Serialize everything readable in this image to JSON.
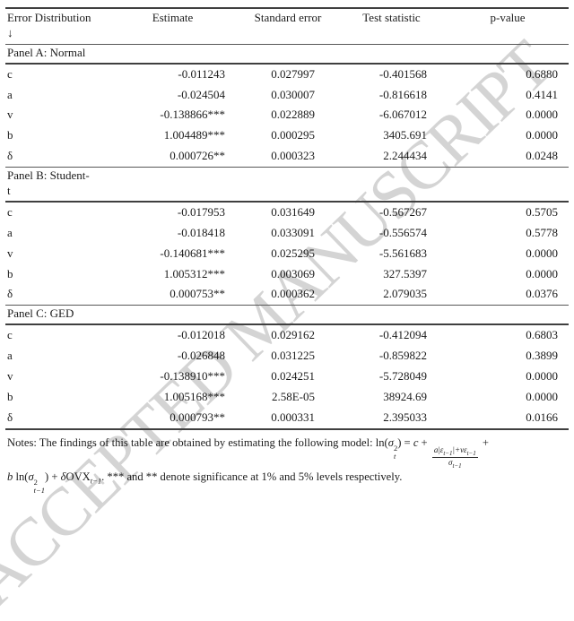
{
  "watermark": {
    "text": "ACCEPTED MANUSCRIPT"
  },
  "table": {
    "header": {
      "col0": "Error Distribution\n↓",
      "col1": "Estimate",
      "col2": "Standard error",
      "col3": "Test statistic",
      "col4": "p-value"
    },
    "panels": [
      {
        "label": "Panel A: Normal",
        "rows": [
          {
            "param": "c",
            "estimate": "-0.011243",
            "std_error": "0.027997",
            "test_stat": "-0.401568",
            "p_value": "0.6880"
          },
          {
            "param": "a",
            "estimate": "-0.024504",
            "std_error": "0.030007",
            "test_stat": "-0.816618",
            "p_value": "0.4141"
          },
          {
            "param": "v",
            "estimate": "-0.138866***",
            "std_error": "0.022889",
            "test_stat": "-6.067012",
            "p_value": "0.0000"
          },
          {
            "param": "b",
            "estimate": "1.004489***",
            "std_error": "0.000295",
            "test_stat": "3405.691",
            "p_value": "0.0000"
          },
          {
            "param": "δ",
            "estimate": "0.000726**",
            "std_error": "0.000323",
            "test_stat": "2.244434",
            "p_value": "0.0248"
          }
        ]
      },
      {
        "label": "Panel B: Student-\nt",
        "rows": [
          {
            "param": "c",
            "estimate": "-0.017953",
            "std_error": "0.031649",
            "test_stat": "-0.567267",
            "p_value": "0.5705"
          },
          {
            "param": "a",
            "estimate": "-0.018418",
            "std_error": "0.033091",
            "test_stat": "-0.556574",
            "p_value": "0.5778"
          },
          {
            "param": "v",
            "estimate": "-0.140681***",
            "std_error": "0.025295",
            "test_stat": "-5.561683",
            "p_value": "0.0000"
          },
          {
            "param": "b",
            "estimate": "1.005312***",
            "std_error": "0.003069",
            "test_stat": "327.5397",
            "p_value": "0.0000"
          },
          {
            "param": "δ",
            "estimate": "0.000753**",
            "std_error": "0.000362",
            "test_stat": "2.079035",
            "p_value": "0.0376"
          }
        ]
      },
      {
        "label": "Panel C: GED",
        "rows": [
          {
            "param": "c",
            "estimate": "-0.012018",
            "std_error": "0.029162",
            "test_stat": "-0.412094",
            "p_value": "0.6803"
          },
          {
            "param": "a",
            "estimate": "-0.026848",
            "std_error": "0.031225",
            "test_stat": "-0.859822",
            "p_value": "0.3899"
          },
          {
            "param": "v",
            "estimate": "-0.138910***",
            "std_error": "0.024251",
            "test_stat": "-5.728049",
            "p_value": "0.0000"
          },
          {
            "param": "b",
            "estimate": "1.005168***",
            "std_error": "2.58E-05",
            "test_stat": "38924.69",
            "p_value": "0.0000"
          },
          {
            "param": "δ",
            "estimate": "0.000793**",
            "std_error": "0.000331",
            "test_stat": "2.395033",
            "p_value": "0.0166"
          }
        ]
      }
    ]
  },
  "notes": {
    "prefix": "Notes: The findings of this table are obtained by estimating the following model: ",
    "formula": {
      "f_ln": "ln(",
      "f_sigma": "σ",
      "f_sup2": "2",
      "f_subt": "t",
      "f_eq": ") = ",
      "f_c": "c",
      "f_plus1": " + ",
      "f_num1": "a|ε",
      "f_numsub1": "t−1",
      "f_num2": "|+vε",
      "f_numsub2": "t−1",
      "f_den": "σ",
      "f_densub": "t−1",
      "f_plus2": " +",
      "f2_b": "b",
      "f2_ln": " ln(",
      "f2_sigma": "σ",
      "f2_sup": "2",
      "f2_sub": "t−1",
      "f2_close": ") + ",
      "f2_delta": "δ",
      "f2_ovx": "OVX",
      "f2_ovxsub": "t−1",
      "f_suffix": ". *** and ** denote significance at 1% and 5% levels respectively."
    }
  }
}
